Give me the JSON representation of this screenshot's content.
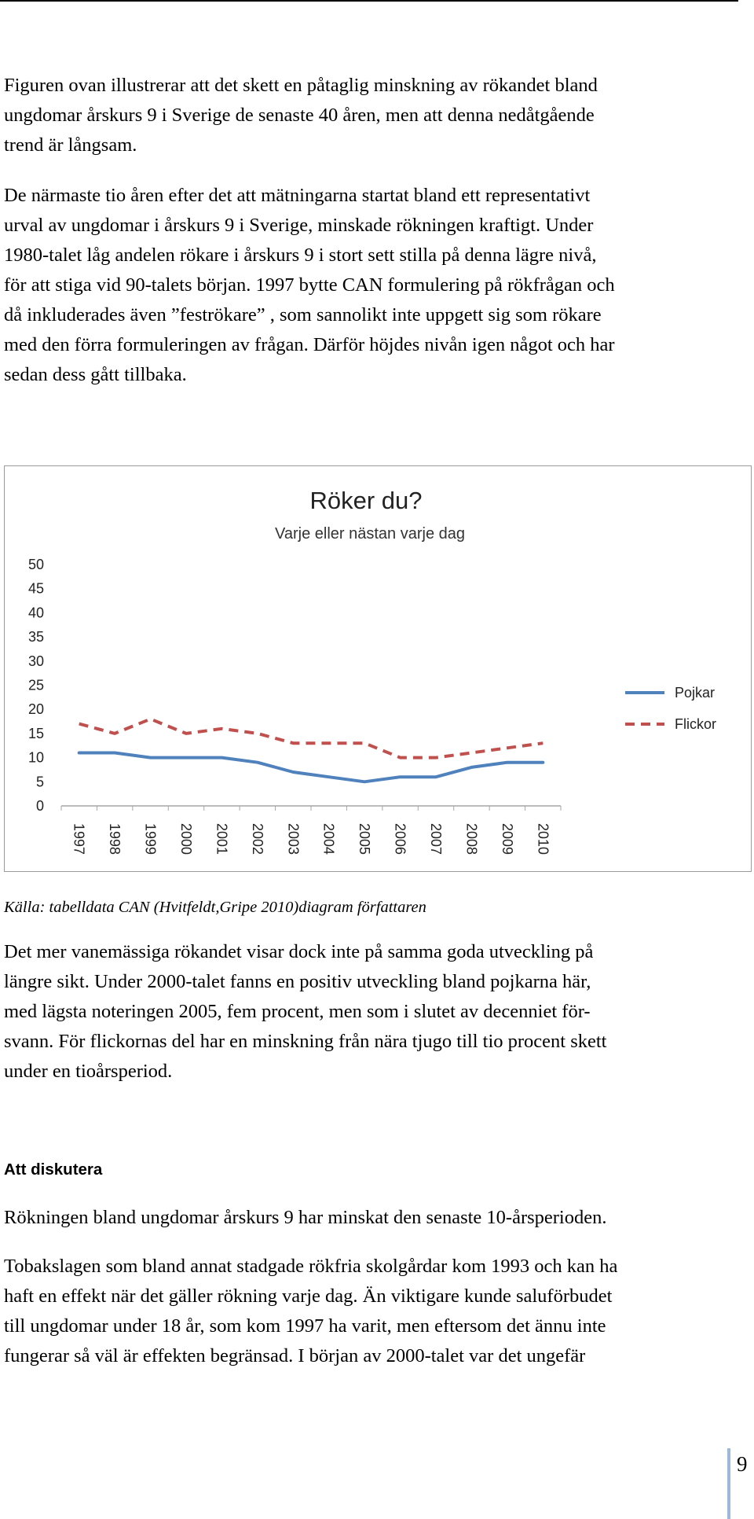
{
  "paragraphs": {
    "intro": [
      "Figuren ovan illustrerar att det skett en påtaglig minskning av rökandet bland",
      "ungdomar årskurs 9 i Sverige de senaste 40 åren, men att denna nedåtgående",
      "trend är långsam."
    ],
    "history": [
      "De närmaste tio åren efter det att mätningarna startat bland ett representativt",
      "urval av ungdomar i årskurs 9 i Sverige, minskade rökningen kraftigt. Under",
      "1980-talet låg andelen rökare i årskurs 9 i stort sett stilla på denna lägre nivå,",
      "för att stiga vid 90-talets början. 1997 bytte CAN formulering på rökfrågan och",
      "då inkluderades även ”feströkare” , som sannolikt inte uppgett sig som rökare",
      "med den förra formuleringen av frågan. Därför höjdes nivån igen något och har",
      "sedan dess gått tillbaka."
    ],
    "habitual": [
      "Det mer vanemässiga rökandet visar dock inte på samma goda utveckling på",
      "längre sikt. Under 2000-talet fanns en positiv utveckling bland pojkarna här,",
      "med lägsta noteringen 2005, fem procent, men som i slutet av decenniet för-",
      "svann. För flickornas del har en minskning från nära tjugo till tio procent skett",
      "under en tioårsperiod."
    ],
    "decline": [
      "Rökningen bland ungdomar årskurs 9 har minskat den senaste 10-årsperioden."
    ],
    "tobacco_law": [
      "Tobakslagen som bland annat stadgade rökfria skolgårdar kom 1993 och kan ha",
      "haft en effekt när det gäller rökning varje dag. Än viktigare kunde saluförbudet",
      "till ungdomar under 18 år, som kom 1997 ha varit, men eftersom det ännu inte",
      "fungerar så väl är effekten begränsad. I början av 2000-talet var det ungefär"
    ]
  },
  "caption": "Källa: tabelldata CAN (Hvitfeldt,Gripe 2010)diagram författaren",
  "section_heading": "Att diskutera",
  "page_number": "9",
  "chart_data": {
    "type": "line",
    "title": "Röker du?",
    "subtitle": "Varje eller nästan varje dag",
    "xlabel": "",
    "ylabel": "",
    "x": [
      "1997",
      "1998",
      "1999",
      "2000",
      "2001",
      "2002",
      "2003",
      "2004",
      "2005",
      "2006",
      "2007",
      "2008",
      "2009",
      "2010"
    ],
    "ylim": [
      0,
      50
    ],
    "yticks": [
      "0",
      "5",
      "10",
      "15",
      "20",
      "25",
      "30",
      "35",
      "40",
      "45",
      "50"
    ],
    "grid": false,
    "legend_position": "right",
    "series": [
      {
        "name": "Pojkar",
        "color": "#4f81bd",
        "style": "solid",
        "values": [
          11,
          11,
          10,
          10,
          10,
          9,
          7,
          6,
          5,
          6,
          6,
          8,
          9,
          9
        ]
      },
      {
        "name": "Flickor",
        "color": "#c0504d",
        "style": "dashed",
        "values": [
          17,
          15,
          18,
          15,
          16,
          15,
          13,
          13,
          13,
          10,
          10,
          11,
          12,
          13
        ]
      }
    ]
  }
}
